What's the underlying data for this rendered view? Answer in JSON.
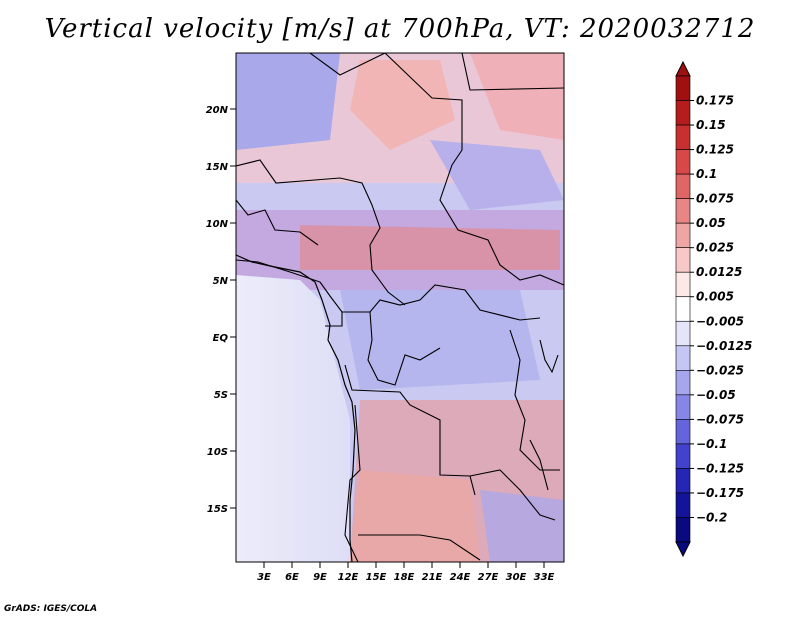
{
  "title": "Vertical velocity [m/s] at 700hPa, VT: 2020032712",
  "footer": "GrADS: IGES/COLA",
  "map": {
    "lon_range": [
      -1,
      35
    ],
    "lat_range": [
      -20,
      24.5
    ],
    "lat_ticks": [
      "20N",
      "15N",
      "10N",
      "5N",
      "EQ",
      "5S",
      "10S",
      "15S"
    ],
    "lat_values": [
      20,
      15,
      10,
      5,
      0,
      -5,
      -10,
      -15
    ],
    "lon_ticks": [
      "3E",
      "6E",
      "9E",
      "12E",
      "15E",
      "18E",
      "21E",
      "24E",
      "27E",
      "30E",
      "33E"
    ],
    "lon_values": [
      3,
      6,
      9,
      12,
      15,
      18,
      21,
      24,
      27,
      30,
      33
    ]
  },
  "colorbar": {
    "labels": [
      "0.175",
      "0.15",
      "0.125",
      "0.1",
      "0.075",
      "0.05",
      "0.025",
      "0.0125",
      "0.005",
      "−0.005",
      "−0.0125",
      "−0.025",
      "−0.05",
      "−0.075",
      "−0.1",
      "−0.125",
      "−0.175",
      "−0.2"
    ],
    "colors": [
      "#a01010",
      "#b51c1c",
      "#c83030",
      "#d84848",
      "#e06565",
      "#e88585",
      "#f0a5a5",
      "#f8c8c8",
      "#fde8e8",
      "#ffffff",
      "#e4e4fa",
      "#c6c6f4",
      "#a6a6ee",
      "#8686e6",
      "#6464dc",
      "#4242cc",
      "#2626b4",
      "#14149a",
      "#0a0a80"
    ]
  }
}
